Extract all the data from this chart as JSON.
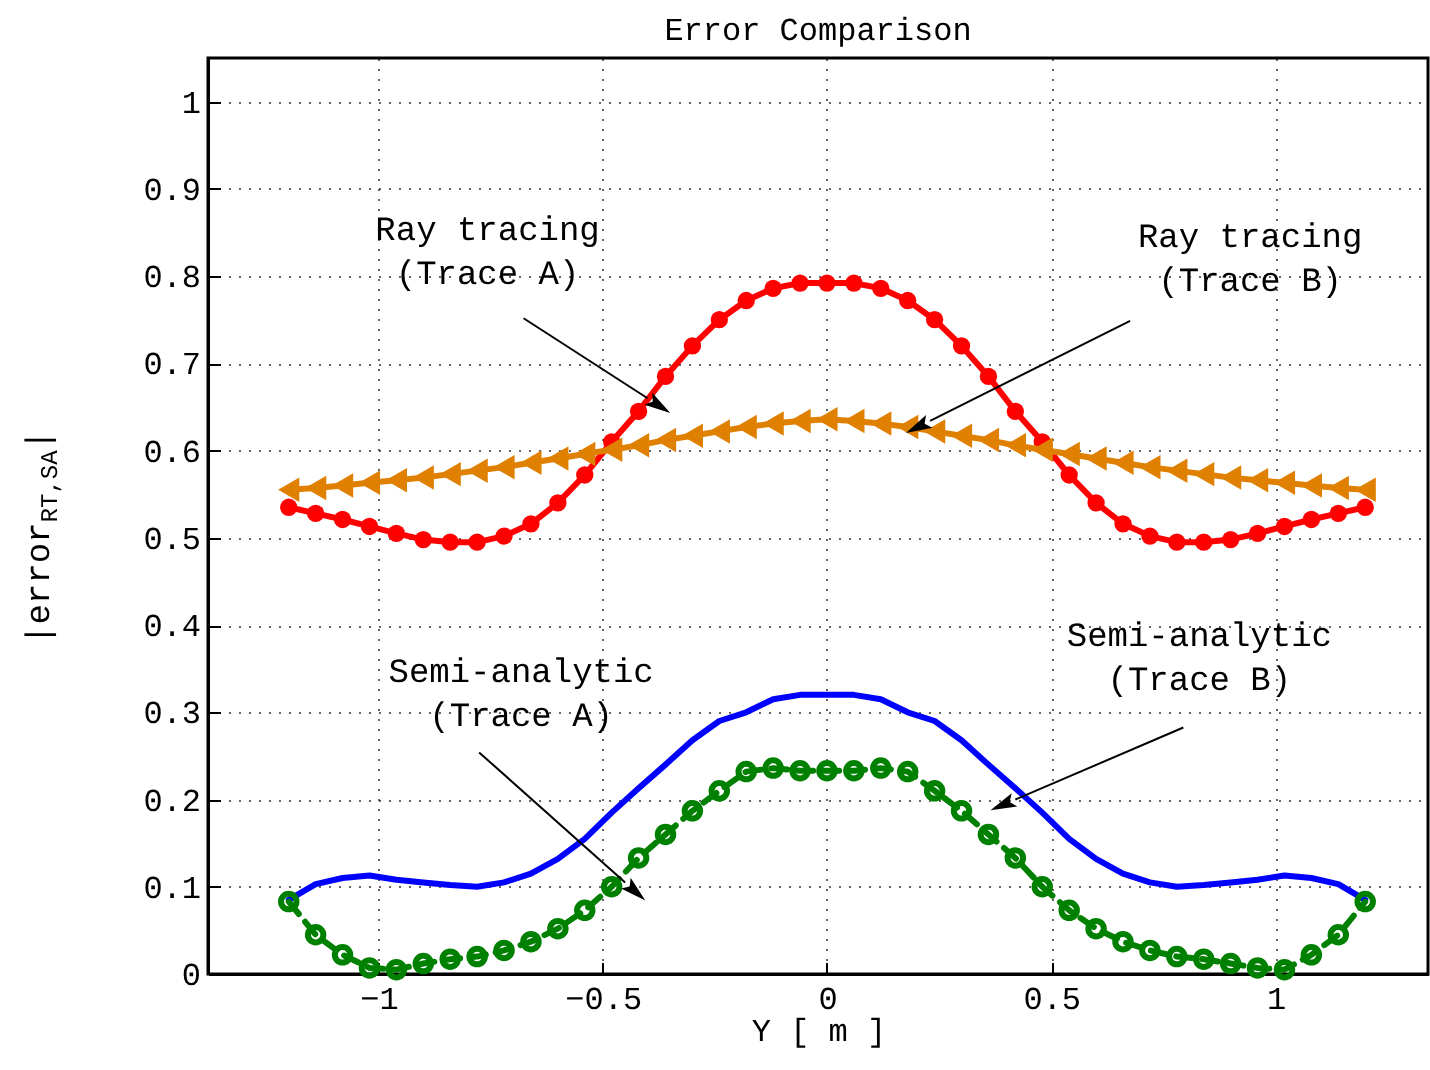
{
  "chart_data": {
    "type": "line",
    "title": "Error Comparison",
    "xlabel": "Y [ m ]",
    "ylabel": "|error$_{RT,SA}$|",
    "x": [
      -1.2,
      -1.14,
      -1.08,
      -1.02,
      -0.96,
      -0.9,
      -0.84,
      -0.78,
      -0.72,
      -0.66,
      -0.6,
      -0.54,
      -0.48,
      -0.42,
      -0.36,
      -0.3,
      -0.24,
      -0.18,
      -0.12,
      -0.06,
      0,
      0.06,
      0.12,
      0.18,
      0.24,
      0.3,
      0.36,
      0.42,
      0.48,
      0.54,
      0.6,
      0.66,
      0.72,
      0.78,
      0.84,
      0.9,
      0.96,
      1.02,
      1.08,
      1.14,
      1.2
    ],
    "series": [
      {
        "color": "#ff0000",
        "marker": "circle",
        "line_style": "solid",
        "values": [
          0.535,
          0.528,
          0.521,
          0.513,
          0.505,
          0.498,
          0.495,
          0.495,
          0.502,
          0.516,
          0.54,
          0.572,
          0.61,
          0.645,
          0.685,
          0.72,
          0.75,
          0.772,
          0.786,
          0.792,
          0.792,
          0.792,
          0.786,
          0.772,
          0.75,
          0.72,
          0.685,
          0.645,
          0.61,
          0.572,
          0.54,
          0.516,
          0.502,
          0.495,
          0.495,
          0.498,
          0.505,
          0.513,
          0.521,
          0.528,
          0.535
        ]
      },
      {
        "color": "#df8000",
        "marker": "triangle",
        "line_style": "solid",
        "values": [
          0.555,
          0.557,
          0.56,
          0.563,
          0.566,
          0.569,
          0.573,
          0.577,
          0.581,
          0.586,
          0.591,
          0.596,
          0.601,
          0.606,
          0.612,
          0.617,
          0.622,
          0.627,
          0.631,
          0.634,
          0.636,
          0.634,
          0.631,
          0.627,
          0.622,
          0.617,
          0.612,
          0.606,
          0.601,
          0.596,
          0.591,
          0.586,
          0.581,
          0.577,
          0.573,
          0.569,
          0.566,
          0.563,
          0.56,
          0.557,
          0.555
        ]
      },
      {
        "color": "#0000ff",
        "marker": "none",
        "line_style": "solid",
        "values": [
          0.085,
          0.103,
          0.11,
          0.113,
          0.108,
          0.105,
          0.102,
          0.1,
          0.105,
          0.115,
          0.132,
          0.155,
          0.185,
          0.213,
          0.24,
          0.268,
          0.29,
          0.3,
          0.315,
          0.32,
          0.32,
          0.32,
          0.315,
          0.3,
          0.29,
          0.268,
          0.24,
          0.213,
          0.185,
          0.155,
          0.132,
          0.115,
          0.105,
          0.1,
          0.102,
          0.105,
          0.108,
          0.113,
          0.11,
          0.103,
          0.085
        ]
      },
      {
        "color": "#008000",
        "marker": "circle",
        "line_style": "dashed",
        "values": [
          0.083,
          0.045,
          0.022,
          0.007,
          0.005,
          0.012,
          0.017,
          0.02,
          0.027,
          0.037,
          0.052,
          0.073,
          0.1,
          0.133,
          0.16,
          0.187,
          0.21,
          0.232,
          0.236,
          0.233,
          0.233,
          0.233,
          0.236,
          0.232,
          0.21,
          0.187,
          0.16,
          0.133,
          0.1,
          0.073,
          0.052,
          0.037,
          0.027,
          0.02,
          0.017,
          0.012,
          0.007,
          0.005,
          0.022,
          0.045,
          0.083
        ]
      }
    ],
    "annotations": [
      {
        "text": "Ray tracing\n(Trace A)",
        "x": -0.4,
        "y": 0.66
      },
      {
        "text": "Ray tracing\n(Trace B)",
        "x": 0.23,
        "y": 0.634
      },
      {
        "text": "Semi-analytic\n(Trace A)",
        "x": -0.45,
        "y": 0.105
      },
      {
        "text": "Semi-analytic\n(Trace B)",
        "x": 0.42,
        "y": 0.2
      }
    ],
    "xlim": [
      -1.38,
      1.34
    ],
    "xticks": [
      -1,
      -0.5,
      0,
      0.5,
      1
    ],
    "ylim": [
      0,
      1.05
    ],
    "yticks": [
      0,
      0.1,
      0.2,
      0.3,
      0.4,
      0.5,
      0.6,
      0.7,
      0.8,
      0.9,
      1
    ],
    "grid": true
  }
}
